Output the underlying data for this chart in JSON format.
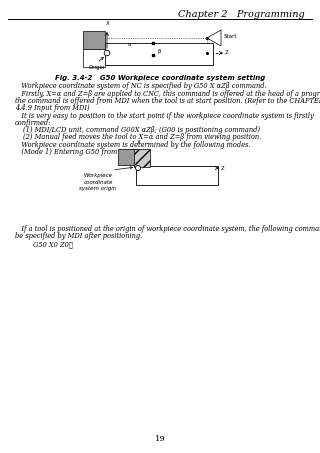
{
  "title": "Chapter 2   Programming",
  "fig_caption": "Fig. 3.4-2   G50 Workpiece coordinate system setting",
  "page_number": "19",
  "bg_color": "#ffffff",
  "text_color": "#000000",
  "header_fontsize": 7,
  "body_fontsize": 4.8,
  "caption_fontsize": 5.0
}
